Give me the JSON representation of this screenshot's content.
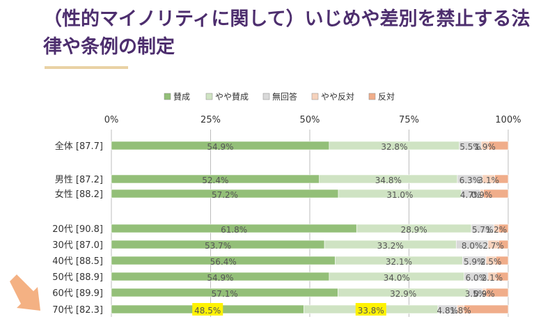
{
  "title": "（性的マイノリティに関して）いじめや差別を禁止する法律や条例の制定",
  "chart_data": {
    "type": "bar",
    "stacked": true,
    "orientation": "horizontal",
    "xlim": [
      0,
      100
    ],
    "xticks": [
      "0%",
      "25%",
      "50%",
      "75%",
      "100%"
    ],
    "grid": true,
    "legend_position": "top",
    "categories": [
      "全体 [87.7]",
      "男性 [87.2]",
      "女性 [88.2]",
      "20代 [90.8]",
      "30代 [87.0]",
      "40代 [88.5]",
      "50代 [88.9]",
      "60代 [89.9]",
      "70代 [82.3]"
    ],
    "series": [
      {
        "name": "賛成",
        "color": "#93bf78",
        "values": [
          54.9,
          52.4,
          57.2,
          61.8,
          53.7,
          56.4,
          54.9,
          57.1,
          48.5
        ],
        "labels": [
          "54.9%",
          "52.4%",
          "57.2%",
          "61.8%",
          "53.7%",
          "56.4%",
          "54.9%",
          "57.1%",
          "48.5%"
        ]
      },
      {
        "name": "やや賛成",
        "color": "#cfe3c3",
        "values": [
          32.8,
          34.8,
          31.0,
          28.9,
          33.2,
          32.1,
          34.0,
          32.9,
          33.8
        ],
        "labels": [
          "32.8%",
          "34.8%",
          "31.0%",
          "28.9%",
          "33.2%",
          "32.1%",
          "34.0%",
          "32.9%",
          "33.8%"
        ]
      },
      {
        "name": "無回答",
        "color": "#d9d9d9",
        "values": [
          5.5,
          6.3,
          4.7,
          5.7,
          8.0,
          5.9,
          6.0,
          3.5,
          4.8
        ],
        "labels": [
          "5.5%",
          "6.3%",
          "4.7%",
          "5.7%",
          "8.0%",
          "5.9%",
          "6.0%",
          "3.5%",
          "4.8%"
        ]
      },
      {
        "name": "やや反対",
        "color": "#f6d2bc",
        "values": [
          1.9,
          3.1,
          0.9,
          1.2,
          2.7,
          2.5,
          2.1,
          0.9,
          1.8
        ],
        "labels": [
          "1.9%",
          "3.1%",
          "0.9%",
          "1.2%",
          "2.7%",
          "2.5%",
          "2.1%",
          "0.9%",
          "1.8%"
        ]
      },
      {
        "name": "反対",
        "color": "#f0ad8a",
        "values": [
          4.9,
          3.4,
          6.2,
          2.4,
          2.4,
          3.1,
          3.0,
          5.6,
          11.1
        ],
        "labels": [
          "",
          "",
          "",
          "",
          "",
          "",
          "",
          "",
          ""
        ]
      }
    ],
    "highlights": [
      {
        "category": "70代 [82.3]",
        "series": [
          "賛成",
          "やや賛成"
        ],
        "color": "#fff200"
      }
    ],
    "annotation_arrow": {
      "category": "70代 [82.3]",
      "color": "#f4b183"
    }
  }
}
